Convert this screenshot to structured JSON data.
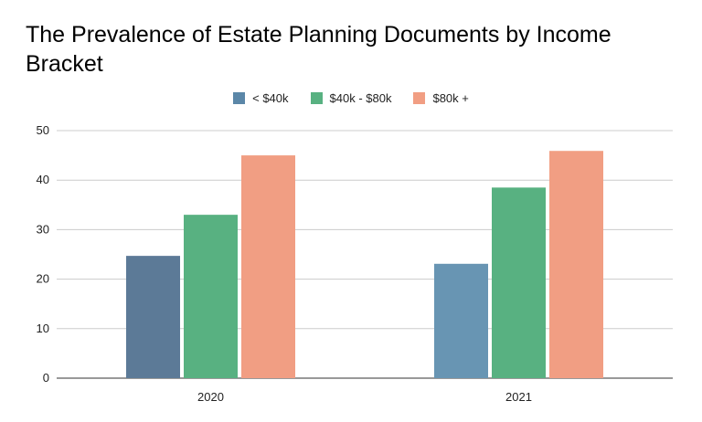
{
  "chart_data": {
    "type": "bar",
    "title": "The Prevalence of Estate Planning Documents by Income Bracket",
    "xlabel": "",
    "ylabel": "",
    "categories": [
      "2020",
      "2021"
    ],
    "series": [
      {
        "name": "< $40k",
        "values": [
          24.7,
          23.1
        ],
        "colors": [
          "#5c7a97",
          "#6895b3"
        ]
      },
      {
        "name": "$40k - $80k",
        "values": [
          33.0,
          38.5
        ],
        "colors": [
          "#58b181",
          "#58b181"
        ]
      },
      {
        "name": "$80k +",
        "values": [
          45.0,
          45.9
        ],
        "colors": [
          "#f19e83",
          "#f19e83"
        ]
      }
    ],
    "ylim": [
      0,
      50
    ],
    "yticks": [
      0,
      10,
      20,
      30,
      40,
      50
    ],
    "grid": true,
    "legend_position": "top"
  },
  "legend_colors": [
    "#5b87a8",
    "#58b181",
    "#f19e83"
  ]
}
